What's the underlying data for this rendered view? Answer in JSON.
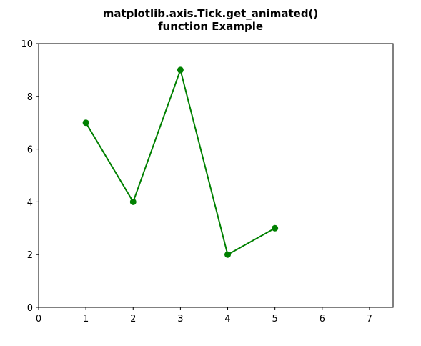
{
  "chart_data": {
    "type": "line",
    "title_lines": [
      "matplotlib.axis.Tick.get_animated()",
      "function Example"
    ],
    "xlabel": "",
    "ylabel": "",
    "x": [
      1,
      2,
      3,
      4,
      5
    ],
    "series": [
      {
        "values": [
          7,
          4,
          9,
          2,
          3
        ],
        "color": "#008000",
        "marker": "circle"
      }
    ],
    "xlim": [
      0,
      7.5
    ],
    "ylim": [
      0,
      10
    ],
    "xticks": [
      "0",
      "1",
      "2",
      "3",
      "4",
      "5",
      "6",
      "7"
    ],
    "yticks": [
      "0",
      "2",
      "4",
      "6",
      "8",
      "10"
    ],
    "grid": false,
    "legend": "none"
  }
}
